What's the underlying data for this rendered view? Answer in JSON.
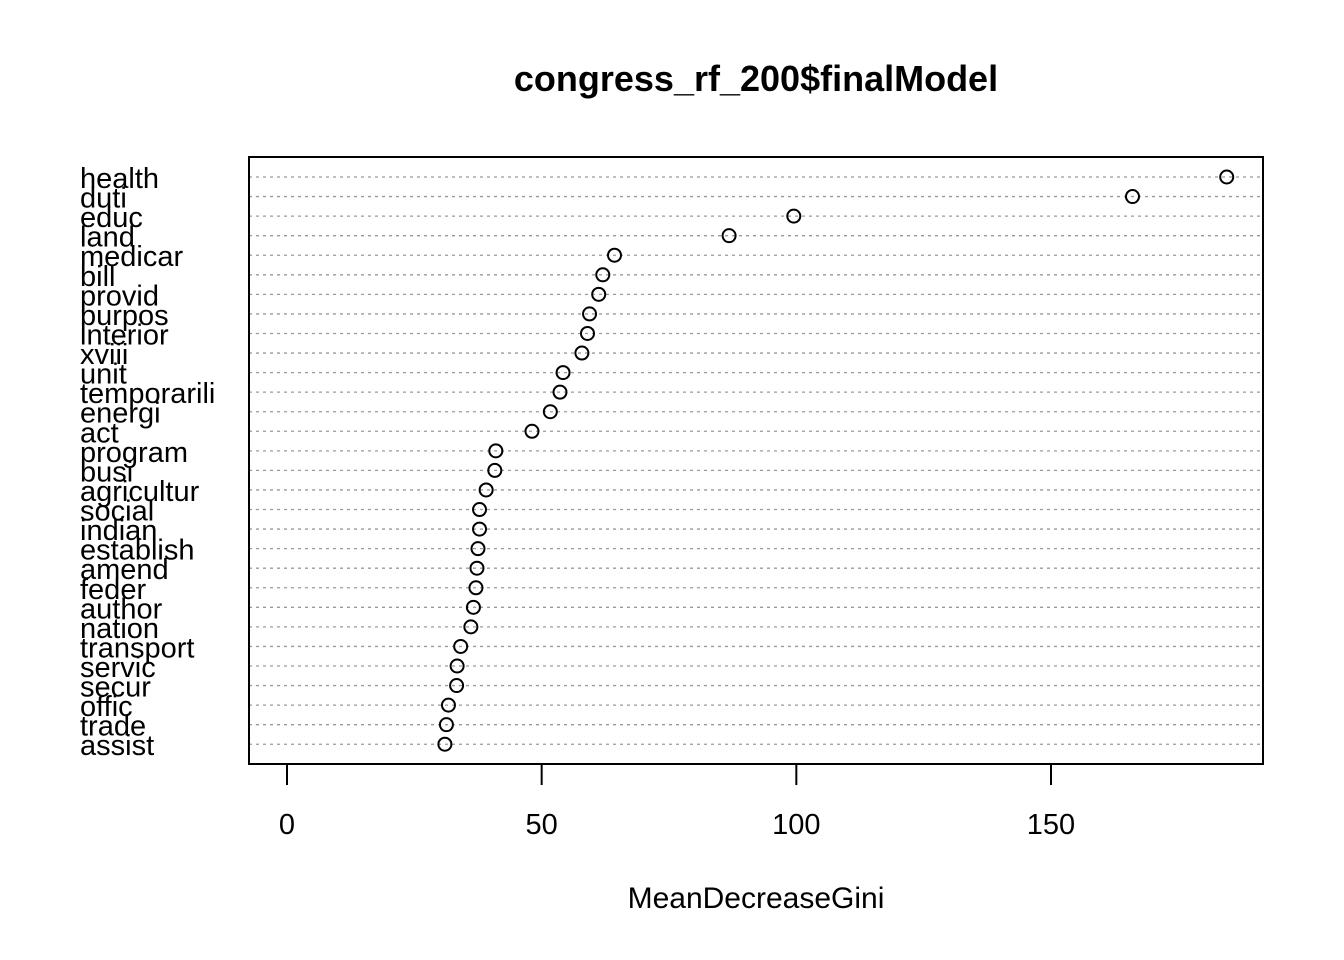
{
  "chart_data": {
    "type": "scatter",
    "title": "congress_rf_200$finalModel",
    "xlabel": "MeanDecreaseGini",
    "ylabel": "",
    "xlim": [
      -7.5,
      191.5
    ],
    "x_ticks": [
      0,
      50,
      100,
      150
    ],
    "grid": "dotted horizontal lines per category",
    "categories": [
      "health",
      "duti",
      "educ",
      "land",
      "medicar",
      "bill",
      "provid",
      "purpos",
      "interior",
      "xviii",
      "unit",
      "temporarili",
      "energi",
      "act",
      "program",
      "busi",
      "agricultur",
      "social",
      "indian",
      "establish",
      "amend",
      "feder",
      "author",
      "nation",
      "transport",
      "servic",
      "secur",
      "offic",
      "trade",
      "assist"
    ],
    "values": [
      184.5,
      166.0,
      99.5,
      86.8,
      64.3,
      62.0,
      61.2,
      59.4,
      59.0,
      57.9,
      54.2,
      53.6,
      51.7,
      48.1,
      41.0,
      40.8,
      39.1,
      37.8,
      37.8,
      37.5,
      37.3,
      37.1,
      36.6,
      36.1,
      34.1,
      33.4,
      33.3,
      31.7,
      31.3,
      31.0
    ]
  }
}
